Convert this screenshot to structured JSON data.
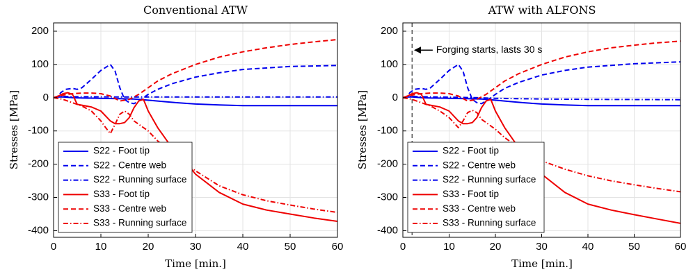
{
  "chart_data": [
    {
      "type": "line",
      "title": "Conventional ATW",
      "xlabel": "Time [min.]",
      "ylabel": "Stresses [MPa]",
      "xlim": [
        0,
        60
      ],
      "ylim": [
        -420,
        225
      ],
      "xticks": [
        0,
        10,
        20,
        30,
        40,
        50,
        60
      ],
      "yticks": [
        -400,
        -300,
        -200,
        -100,
        0,
        100,
        200
      ],
      "grid": true,
      "legend_position": "bottom-left",
      "series": [
        {
          "name": "S22 - Foot tip",
          "color": "#0000ee",
          "dash": "solid",
          "x": [
            0,
            1,
            2,
            3,
            4,
            6,
            10,
            14,
            17,
            19,
            22,
            26,
            30,
            35,
            40,
            50,
            60
          ],
          "y": [
            0,
            2,
            2,
            1,
            0,
            -1,
            -2,
            -3,
            -4,
            -6,
            -10,
            -15,
            -19,
            -22,
            -24,
            -24,
            -24
          ]
        },
        {
          "name": "S22 - Centre web",
          "color": "#0000ee",
          "dash": "dashed",
          "x": [
            0,
            1,
            1.5,
            2.5,
            4,
            5,
            6,
            8,
            10,
            12,
            13,
            14,
            15,
            16,
            17,
            18,
            19,
            20,
            22,
            25,
            30,
            35,
            40,
            50,
            60
          ],
          "y": [
            0,
            5,
            15,
            25,
            28,
            25,
            30,
            55,
            82,
            100,
            80,
            30,
            -5,
            -15,
            -18,
            -10,
            0,
            10,
            25,
            42,
            62,
            75,
            85,
            94,
            97
          ]
        },
        {
          "name": "S22 - Running surface",
          "color": "#0000ee",
          "dash": "dashdot",
          "x": [
            0,
            1,
            2,
            4,
            8,
            12,
            16,
            20,
            30,
            40,
            60
          ],
          "y": [
            0,
            3,
            4,
            3,
            3,
            2,
            2,
            2,
            2,
            2,
            2
          ]
        },
        {
          "name": "S33 - Foot tip",
          "color": "#ee0000",
          "dash": "solid",
          "x": [
            0,
            1,
            2,
            3,
            4,
            5,
            8,
            10,
            12,
            13,
            14,
            15,
            16,
            17,
            18,
            19,
            20,
            22,
            25,
            28,
            30,
            35,
            40,
            45,
            50,
            55,
            60
          ],
          "y": [
            0,
            5,
            12,
            15,
            10,
            -20,
            -28,
            -40,
            -70,
            -78,
            -78,
            -75,
            -60,
            -30,
            -10,
            -5,
            -40,
            -90,
            -150,
            -195,
            -230,
            -285,
            -320,
            -338,
            -350,
            -362,
            -372
          ]
        },
        {
          "name": "S33 - Centre web",
          "color": "#ee0000",
          "dash": "dashed",
          "x": [
            0,
            2,
            4,
            6,
            8,
            10,
            12,
            14,
            16,
            18,
            20,
            22,
            25,
            30,
            35,
            40,
            45,
            50,
            55,
            60
          ],
          "y": [
            0,
            8,
            12,
            14,
            14,
            12,
            5,
            -10,
            -5,
            10,
            30,
            50,
            72,
            100,
            122,
            138,
            150,
            160,
            168,
            175
          ]
        },
        {
          "name": "S33 - Running surface",
          "color": "#ee0000",
          "dash": "dashdot",
          "x": [
            0,
            2,
            4,
            6,
            8,
            10,
            11,
            12,
            13,
            14,
            15,
            16,
            17,
            18,
            20,
            22,
            25,
            28,
            30,
            35,
            40,
            45,
            50,
            55,
            60
          ],
          "y": [
            0,
            -5,
            -15,
            -25,
            -40,
            -70,
            -90,
            -108,
            -80,
            -50,
            -40,
            -50,
            -70,
            -80,
            -100,
            -130,
            -165,
            -200,
            -220,
            -265,
            -292,
            -310,
            -323,
            -335,
            -345
          ]
        }
      ]
    },
    {
      "type": "line",
      "title": "ATW with ALFONS",
      "xlabel": "Time [min.]",
      "ylabel": "Stresses [MPa]",
      "xlim": [
        0,
        60
      ],
      "ylim": [
        -420,
        225
      ],
      "xticks": [
        0,
        10,
        20,
        30,
        40,
        50,
        60
      ],
      "yticks": [
        -400,
        -300,
        -200,
        -100,
        0,
        100,
        200
      ],
      "grid": true,
      "legend_position": "bottom-left",
      "vline_x": 2,
      "annotation": {
        "text": "Forging starts, lasts 30 s",
        "x": 7.2,
        "y": 143,
        "arrow_to_x": 2.4
      },
      "series": [
        {
          "name": "S22 - Foot tip",
          "color": "#0000ee",
          "dash": "solid",
          "x": [
            0,
            1,
            2,
            3,
            4,
            6,
            10,
            14,
            17,
            19,
            22,
            26,
            30,
            35,
            40,
            50,
            60
          ],
          "y": [
            0,
            2,
            2,
            1,
            0,
            -1,
            -2,
            -3,
            -4,
            -6,
            -10,
            -15,
            -19,
            -22,
            -24,
            -24,
            -24
          ]
        },
        {
          "name": "S22 - Centre web",
          "color": "#0000ee",
          "dash": "dashed",
          "x": [
            0,
            1,
            1.5,
            2.5,
            4,
            5,
            6,
            8,
            10,
            12,
            13,
            14,
            15,
            16,
            17,
            18,
            19,
            20,
            22,
            25,
            30,
            35,
            40,
            50,
            60
          ],
          "y": [
            0,
            5,
            15,
            25,
            28,
            25,
            30,
            55,
            82,
            100,
            80,
            30,
            -5,
            -15,
            -18,
            -10,
            0,
            10,
            28,
            46,
            68,
            82,
            92,
            102,
            108
          ]
        },
        {
          "name": "S22 - Running surface",
          "color": "#0000ee",
          "dash": "dashdot",
          "x": [
            0,
            1,
            2,
            4,
            8,
            12,
            16,
            20,
            30,
            40,
            60
          ],
          "y": [
            0,
            3,
            4,
            3,
            2,
            1,
            0,
            -2,
            -4,
            -5,
            -6
          ]
        },
        {
          "name": "S33 - Foot tip",
          "color": "#ee0000",
          "dash": "solid",
          "x": [
            0,
            1,
            2,
            3,
            4,
            5,
            8,
            10,
            12,
            13,
            14,
            15,
            16,
            17,
            18,
            19,
            20,
            22,
            25,
            28,
            30,
            35,
            40,
            45,
            50,
            55,
            60
          ],
          "y": [
            0,
            5,
            12,
            15,
            10,
            -20,
            -28,
            -40,
            -70,
            -78,
            -78,
            -75,
            -60,
            -30,
            -10,
            -5,
            -40,
            -90,
            -150,
            -195,
            -230,
            -285,
            -320,
            -338,
            -352,
            -365,
            -378
          ]
        },
        {
          "name": "S33 - Centre web",
          "color": "#ee0000",
          "dash": "dashed",
          "x": [
            0,
            2,
            4,
            6,
            8,
            10,
            12,
            14,
            16,
            18,
            20,
            22,
            25,
            30,
            35,
            40,
            45,
            50,
            55,
            60
          ],
          "y": [
            0,
            8,
            12,
            14,
            14,
            12,
            5,
            -10,
            -5,
            10,
            30,
            50,
            72,
            100,
            122,
            138,
            150,
            158,
            165,
            170
          ]
        },
        {
          "name": "S33 - Running surface",
          "color": "#ee0000",
          "dash": "dashdot",
          "x": [
            0,
            2,
            4,
            6,
            8,
            10,
            11,
            12,
            13,
            14,
            15,
            16,
            17,
            18,
            20,
            22,
            25,
            28,
            30,
            35,
            40,
            45,
            50,
            55,
            60
          ],
          "y": [
            0,
            -5,
            -15,
            -25,
            -40,
            -60,
            -75,
            -90,
            -70,
            -45,
            -38,
            -45,
            -65,
            -75,
            -95,
            -120,
            -150,
            -175,
            -190,
            -215,
            -235,
            -250,
            -262,
            -273,
            -283
          ]
        }
      ]
    }
  ]
}
